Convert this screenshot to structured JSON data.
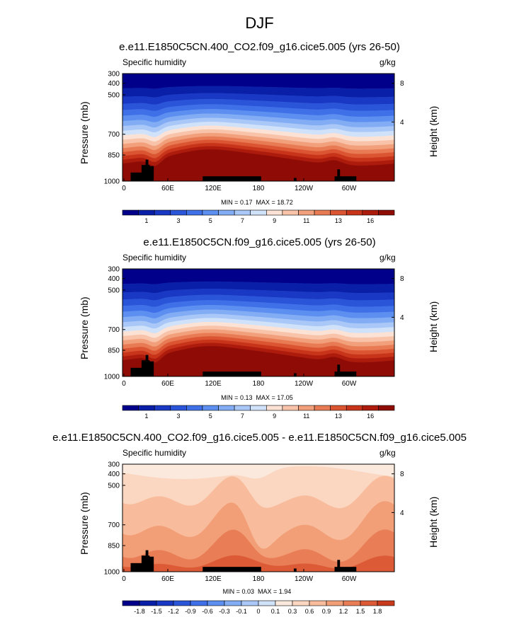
{
  "title": "DJF",
  "chart_data": [
    {
      "type": "heatmap",
      "title": "e.e11.E1850C5CN.400_CO2.f09_g16.cice5.005 (yrs 26-50)",
      "left_label": "Specific humidity",
      "right_label": "g/kg",
      "ylabel": "Pressure (mb)",
      "y2label": "Height (km)",
      "x_ticks": [
        "0",
        "60E",
        "120E",
        "180",
        "120W",
        "60W"
      ],
      "y_ticks": [
        "300",
        "400",
        "500",
        "700",
        "850",
        "1000"
      ],
      "y2_ticks": [
        "8",
        "4"
      ],
      "min_label": "MIN =",
      "min": "0.17",
      "max_label": "MAX =",
      "max": "18.72",
      "colorbar_labels": [
        "1",
        "3",
        "5",
        "7",
        "9",
        "11",
        "13",
        "16"
      ],
      "colors": [
        "#00008b",
        "#0a1fa8",
        "#1939c4",
        "#2b55d9",
        "#3f70e8",
        "#5c8ff0",
        "#82acf4",
        "#aac8f7",
        "#d0e2fa",
        "#fbe2d4",
        "#f8c3a8",
        "#f2a07c",
        "#e97b54",
        "#dc5533",
        "#c83419",
        "#ad1b0d",
        "#8f0b06"
      ]
    },
    {
      "type": "heatmap",
      "title": "e.e11.E1850C5CN.f09_g16.cice5.005 (yrs 26-50)",
      "left_label": "Specific humidity",
      "right_label": "g/kg",
      "ylabel": "Pressure (mb)",
      "y2label": "Height (km)",
      "x_ticks": [
        "0",
        "60E",
        "120E",
        "180",
        "120W",
        "60W"
      ],
      "y_ticks": [
        "300",
        "400",
        "500",
        "700",
        "850",
        "1000"
      ],
      "y2_ticks": [
        "8",
        "4"
      ],
      "min_label": "MIN =",
      "min": "0.13",
      "max_label": "MAX =",
      "max": "17.05",
      "colorbar_labels": [
        "1",
        "3",
        "5",
        "7",
        "9",
        "11",
        "13",
        "16"
      ],
      "colors": [
        "#00008b",
        "#0a1fa8",
        "#1939c4",
        "#2b55d9",
        "#3f70e8",
        "#5c8ff0",
        "#82acf4",
        "#aac8f7",
        "#d0e2fa",
        "#fbe2d4",
        "#f8c3a8",
        "#f2a07c",
        "#e97b54",
        "#dc5533",
        "#c83419",
        "#ad1b0d",
        "#8f0b06"
      ]
    },
    {
      "type": "heatmap",
      "title": "e.e11.E1850C5CN.400_CO2.f09_g16.cice5.005 - e.e11.E1850C5CN.f09_g16.cice5.005",
      "left_label": "Specific humidity",
      "right_label": "g/kg",
      "ylabel": "Pressure (mb)",
      "y2label": "Height (km)",
      "x_ticks": [
        "0",
        "60E",
        "120E",
        "180",
        "120W",
        "60W"
      ],
      "y_ticks": [
        "300",
        "400",
        "500",
        "700",
        "850",
        "1000"
      ],
      "y2_ticks": [
        "8",
        "4"
      ],
      "min_label": "MIN =",
      "min": "0.03",
      "max_label": "MAX =",
      "max": "1.94",
      "colorbar_labels": [
        "-1.8",
        "-1.5",
        "-1.2",
        "-0.9",
        "-0.6",
        "-0.3",
        "-0.1",
        "0",
        "0.1",
        "0.3",
        "0.6",
        "0.9",
        "1.2",
        "1.5",
        "1.8"
      ],
      "colors": [
        "#00008b",
        "#0a1fa8",
        "#1939c4",
        "#2b55d9",
        "#3f70e8",
        "#5c8ff0",
        "#82acf4",
        "#aac8f7",
        "#d0e2fa",
        "#fbe9dd",
        "#fbd6c0",
        "#f8bc9c",
        "#f29e77",
        "#e97d55",
        "#dc5a36",
        "#c83a1c"
      ]
    }
  ]
}
